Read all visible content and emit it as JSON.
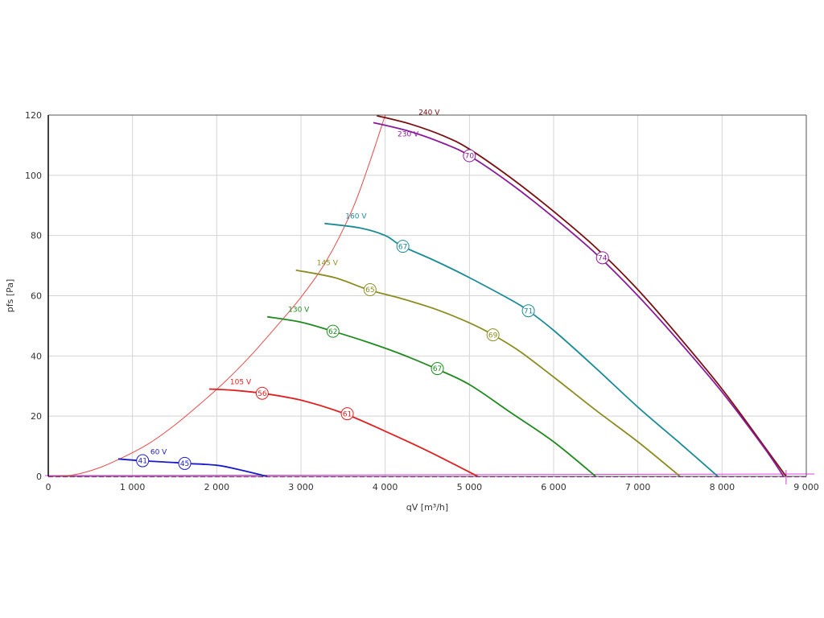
{
  "chart_data": {
    "type": "line",
    "xlabel": "qV [m³/h]",
    "ylabel": "pfs [Pa]",
    "xlim": [
      0,
      9000
    ],
    "ylim": [
      0,
      120
    ],
    "x_ticks": [
      0,
      1000,
      2000,
      3000,
      4000,
      5000,
      6000,
      7000,
      8000,
      9000
    ],
    "x_tick_labels": [
      "0",
      "1 000",
      "2 000",
      "3 000",
      "4 000",
      "5 000",
      "6 000",
      "7 000",
      "8 000",
      "9 000"
    ],
    "y_ticks": [
      0,
      20,
      40,
      60,
      80,
      100,
      120
    ],
    "y_tick_labels": [
      "0",
      "20",
      "40",
      "60",
      "80",
      "100",
      "120"
    ],
    "grid": true,
    "series": [
      {
        "name": "240 V",
        "color": "#7a1010",
        "points": [
          [
            3900,
            119.8
          ],
          [
            4300,
            117
          ],
          [
            4700,
            113
          ],
          [
            5000,
            108.7
          ],
          [
            5500,
            99
          ],
          [
            6000,
            88
          ],
          [
            6500,
            76
          ],
          [
            7000,
            62
          ],
          [
            7500,
            46
          ],
          [
            8000,
            29
          ],
          [
            8500,
            10
          ],
          [
            8760,
            0
          ]
        ]
      },
      {
        "name": "230 V",
        "color": "#8a1a9a",
        "points": [
          [
            3860,
            117.5
          ],
          [
            4300,
            114.5
          ],
          [
            4700,
            110.5
          ],
          [
            5000,
            106.5
          ],
          [
            5500,
            97
          ],
          [
            6000,
            86
          ],
          [
            6500,
            74
          ],
          [
            7000,
            60
          ],
          [
            7500,
            44.5
          ],
          [
            8000,
            28
          ],
          [
            8500,
            9.5
          ],
          [
            8730,
            0
          ]
        ],
        "markers": [
          {
            "x": 5000,
            "y": 106.5,
            "label": "70"
          },
          {
            "x": 6580,
            "y": 72.6,
            "label": "74"
          }
        ]
      },
      {
        "name": "160 V",
        "color": "#1a8c96",
        "points": [
          [
            3280,
            84
          ],
          [
            3700,
            82.5
          ],
          [
            4000,
            80
          ],
          [
            4200,
            76.5
          ],
          [
            4600,
            71.5
          ],
          [
            5000,
            66
          ],
          [
            5500,
            58.5
          ],
          [
            5700,
            55
          ],
          [
            6000,
            48.5
          ],
          [
            6500,
            36
          ],
          [
            7000,
            23
          ],
          [
            7500,
            11
          ],
          [
            7950,
            0
          ]
        ],
        "markers": [
          {
            "x": 4210,
            "y": 76.4,
            "label": "67"
          },
          {
            "x": 5700,
            "y": 55,
            "label": "71"
          }
        ]
      },
      {
        "name": "145 V",
        "color": "#8c8c22",
        "points": [
          [
            2940,
            68.5
          ],
          [
            3400,
            66
          ],
          [
            3800,
            62
          ],
          [
            4200,
            59
          ],
          [
            4600,
            55.5
          ],
          [
            5000,
            51
          ],
          [
            5280,
            47
          ],
          [
            5600,
            41.5
          ],
          [
            6000,
            33
          ],
          [
            6500,
            22
          ],
          [
            7000,
            11.5
          ],
          [
            7500,
            0
          ]
        ],
        "markers": [
          {
            "x": 3820,
            "y": 62,
            "label": "65"
          },
          {
            "x": 5280,
            "y": 47,
            "label": "69"
          }
        ]
      },
      {
        "name": "130 V",
        "color": "#1f8a1f",
        "points": [
          [
            2600,
            53
          ],
          [
            3000,
            51.2
          ],
          [
            3380,
            48.2
          ],
          [
            3800,
            44.5
          ],
          [
            4200,
            40.5
          ],
          [
            4600,
            35.8
          ],
          [
            5000,
            30.5
          ],
          [
            5500,
            21
          ],
          [
            6000,
            11.5
          ],
          [
            6500,
            0
          ]
        ],
        "markers": [
          {
            "x": 3380,
            "y": 48.2,
            "label": "62"
          },
          {
            "x": 4620,
            "y": 35.8,
            "label": "67"
          }
        ]
      },
      {
        "name": "105 V",
        "color": "#e02020",
        "points": [
          [
            1910,
            29
          ],
          [
            2200,
            28.6
          ],
          [
            2540,
            27.6
          ],
          [
            3000,
            25.3
          ],
          [
            3500,
            21
          ],
          [
            4000,
            15
          ],
          [
            4500,
            8.5
          ],
          [
            5100,
            0
          ]
        ],
        "markers": [
          {
            "x": 2540,
            "y": 27.6,
            "label": "56"
          },
          {
            "x": 3550,
            "y": 20.8,
            "label": "61"
          }
        ]
      },
      {
        "name": "60 V",
        "color": "#1a1acc",
        "points": [
          [
            830,
            5.8
          ],
          [
            1100,
            5.2
          ],
          [
            1500,
            4.6
          ],
          [
            1620,
            4.3
          ],
          [
            2000,
            3.7
          ],
          [
            2300,
            2
          ],
          [
            2600,
            0
          ]
        ],
        "markers": [
          {
            "x": 1120,
            "y": 5.2,
            "label": "41"
          },
          {
            "x": 1620,
            "y": 4.3,
            "label": "45"
          }
        ]
      }
    ],
    "system_curve": {
      "color": "#e84a4a",
      "points": [
        [
          0,
          0
        ],
        [
          300,
          0.5
        ],
        [
          600,
          2.8
        ],
        [
          900,
          6.5
        ],
        [
          1200,
          11
        ],
        [
          1500,
          17
        ],
        [
          1800,
          24
        ],
        [
          2100,
          31.5
        ],
        [
          2400,
          40
        ],
        [
          2700,
          49.5
        ],
        [
          3000,
          59.5
        ],
        [
          3300,
          71.5
        ],
        [
          3600,
          88
        ],
        [
          3800,
          103
        ],
        [
          4000,
          120
        ]
      ]
    }
  }
}
